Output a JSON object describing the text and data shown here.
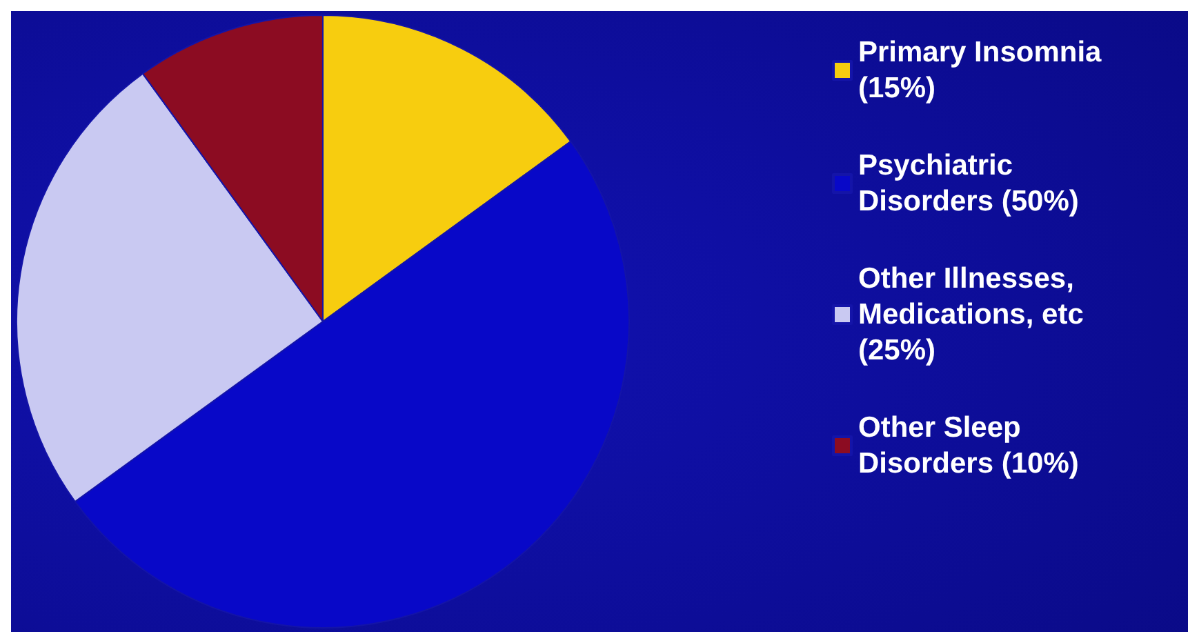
{
  "chart_data": {
    "type": "pie",
    "categories": [
      "Primary Insomnia (15%)",
      "Psychiatric Disorders (50%)",
      "Other Illnesses, Medications, etc (25%)",
      "Other Sleep Disorders (10%)"
    ],
    "values": [
      15,
      50,
      25,
      10
    ],
    "colors": [
      "#f7cd0f",
      "#0808c8",
      "#c9c9f2",
      "#8c0c22"
    ],
    "legend": "right"
  }
}
